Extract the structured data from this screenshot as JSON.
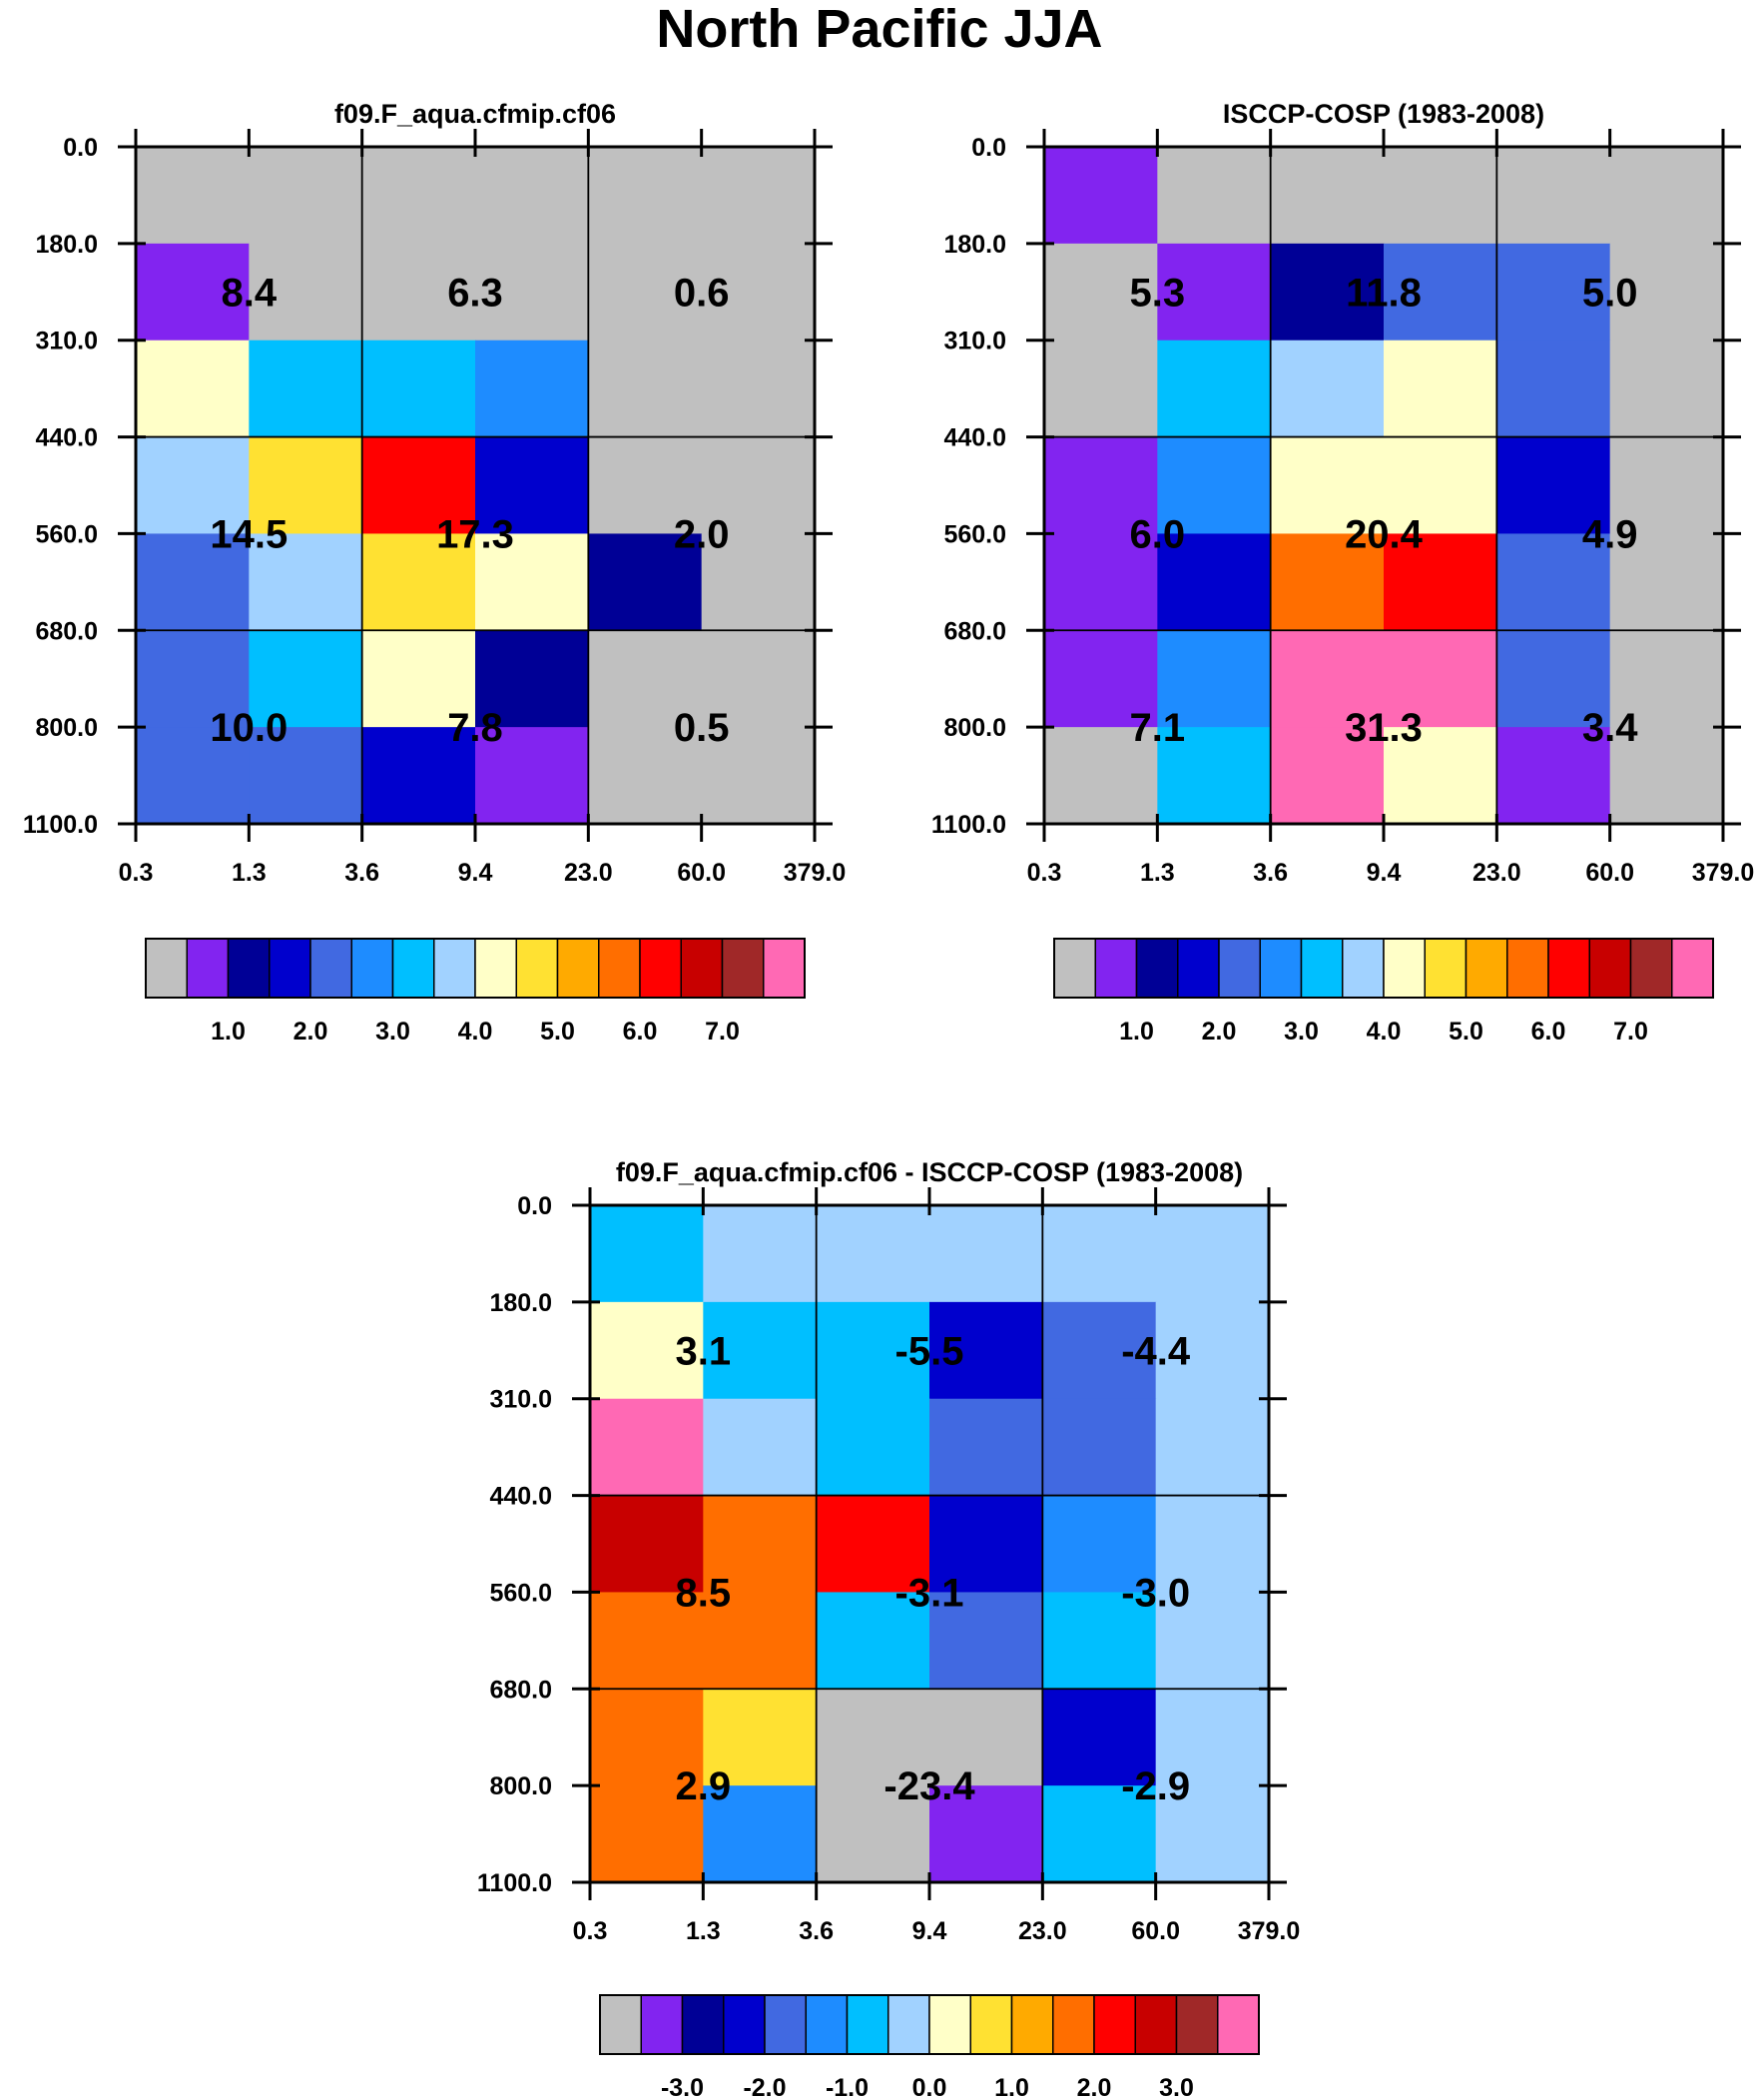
{
  "figure_title": "North Pacific JJA",
  "x_ticks": [
    "0.3",
    "1.3",
    "3.6",
    "9.4",
    "23.0",
    "60.0",
    "379.0"
  ],
  "y_ticks": [
    "0.0",
    "180.0",
    "310.0",
    "440.0",
    "560.0",
    "680.0",
    "800.0",
    "1100.0"
  ],
  "palette": [
    "#c0c0c0",
    "#8224f0",
    "#000096",
    "#0000cd",
    "#4169e1",
    "#1e8cff",
    "#00bfff",
    "#a1d2ff",
    "#ffffc8",
    "#ffe132",
    "#ffaa00",
    "#ff6e00",
    "#ff0000",
    "#c80000",
    "#a02828",
    "#ff69b4"
  ],
  "chart_data": [
    {
      "type": "heatmap",
      "title": "f09.F_aqua.cfmip.cf06",
      "color_index": [
        [
          0,
          0,
          0,
          0,
          0,
          0
        ],
        [
          1,
          0,
          0,
          0,
          0,
          0
        ],
        [
          8,
          6,
          6,
          5,
          0,
          0
        ],
        [
          7,
          9,
          12,
          3,
          0,
          0
        ],
        [
          4,
          7,
          9,
          8,
          2,
          0
        ],
        [
          4,
          6,
          8,
          2,
          0,
          0
        ],
        [
          4,
          4,
          3,
          1,
          0,
          0
        ]
      ],
      "box_values": [
        [
          "8.4",
          "6.3",
          "0.6"
        ],
        [
          "14.5",
          "17.3",
          "2.0"
        ],
        [
          "10.0",
          "7.8",
          "0.5"
        ]
      ],
      "colorbar_labels": [
        "1.0",
        "2.0",
        "3.0",
        "4.0",
        "5.0",
        "6.0",
        "7.0"
      ]
    },
    {
      "type": "heatmap",
      "title": "ISCCP-COSP (1983-2008)",
      "color_index": [
        [
          1,
          0,
          0,
          0,
          0,
          0
        ],
        [
          0,
          1,
          2,
          4,
          4,
          0
        ],
        [
          0,
          6,
          7,
          8,
          4,
          0
        ],
        [
          1,
          5,
          8,
          8,
          3,
          0
        ],
        [
          1,
          3,
          11,
          12,
          4,
          0
        ],
        [
          1,
          5,
          15,
          15,
          4,
          0
        ],
        [
          0,
          6,
          15,
          8,
          1,
          0
        ]
      ],
      "box_values": [
        [
          "5.3",
          "11.8",
          "5.0"
        ],
        [
          "6.0",
          "20.4",
          "4.9"
        ],
        [
          "7.1",
          "31.3",
          "3.4"
        ]
      ],
      "colorbar_labels": [
        "1.0",
        "2.0",
        "3.0",
        "4.0",
        "5.0",
        "6.0",
        "7.0"
      ]
    },
    {
      "type": "heatmap",
      "title": "f09.F_aqua.cfmip.cf06 - ISCCP-COSP (1983-2008)",
      "color_index": [
        [
          6,
          7,
          7,
          7,
          7,
          7
        ],
        [
          8,
          6,
          6,
          3,
          4,
          7
        ],
        [
          15,
          7,
          6,
          4,
          4,
          7
        ],
        [
          13,
          11,
          12,
          3,
          5,
          7
        ],
        [
          11,
          11,
          6,
          4,
          6,
          7
        ],
        [
          11,
          9,
          0,
          0,
          3,
          7
        ],
        [
          11,
          5,
          0,
          1,
          6,
          7
        ]
      ],
      "box_values": [
        [
          "3.1",
          "-5.5",
          "-4.4"
        ],
        [
          "8.5",
          "-3.1",
          "-3.0"
        ],
        [
          "2.9",
          "-23.4",
          "-2.9"
        ]
      ],
      "colorbar_labels": [
        "-3.0",
        "-2.0",
        "-1.0",
        "0.0",
        "1.0",
        "2.0",
        "3.0"
      ]
    }
  ]
}
